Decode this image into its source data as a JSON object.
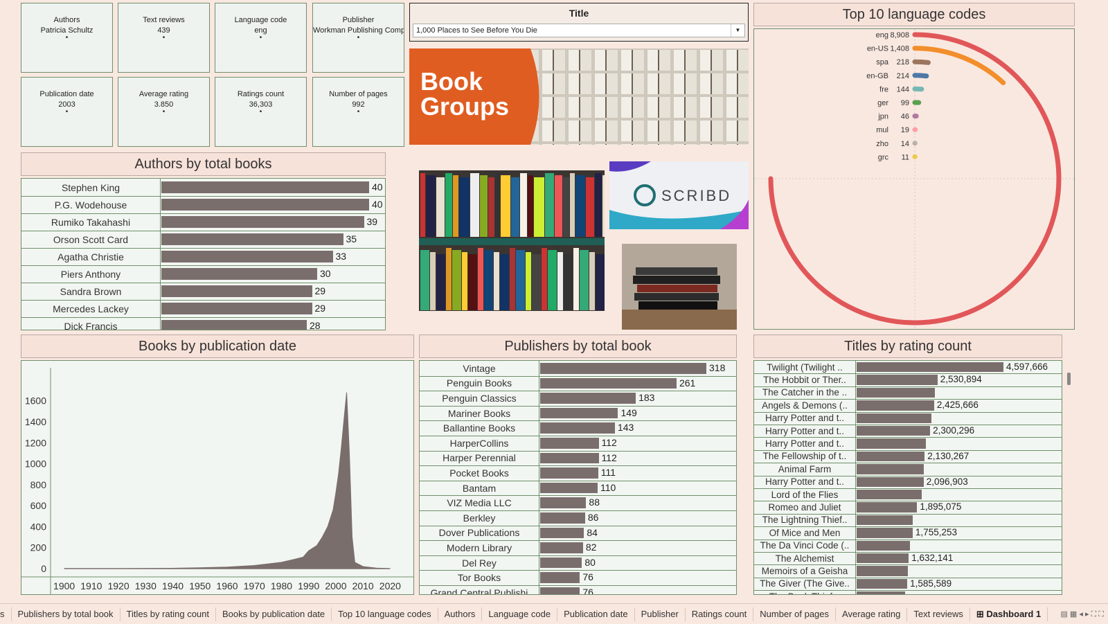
{
  "filters": [
    {
      "label": "Authors",
      "value": "Patricia Schultz"
    },
    {
      "label": "Text reviews",
      "value": "439"
    },
    {
      "label": "Language code",
      "value": "eng"
    },
    {
      "label": "Publisher",
      "value": "Workman Publishing Comp"
    },
    {
      "label": "Publication date",
      "value": "2003"
    },
    {
      "label": "Average rating",
      "value": "3.850"
    },
    {
      "label": "Ratings count",
      "value": "36,303"
    },
    {
      "label": "Number of pages",
      "value": "992"
    }
  ],
  "title_filter": {
    "label": "Title",
    "value": "1,000 Places to See Before You Die"
  },
  "images": {
    "book_groups_text": "Book Groups",
    "scribd_text": "SCRIBD"
  },
  "authors_panel": {
    "title": "Authors by total books",
    "rows": [
      {
        "name": "Stephen King",
        "value": 40
      },
      {
        "name": "P.G. Wodehouse",
        "value": 40
      },
      {
        "name": "Rumiko Takahashi",
        "value": 39
      },
      {
        "name": "Orson Scott Card",
        "value": 35
      },
      {
        "name": "Agatha Christie",
        "value": 33
      },
      {
        "name": "Piers Anthony",
        "value": 30
      },
      {
        "name": "Sandra Brown",
        "value": 29
      },
      {
        "name": "Mercedes Lackey",
        "value": 29
      },
      {
        "name": "Dick Francis",
        "value": 28
      }
    ]
  },
  "languages_panel": {
    "title": "Top 10 language codes",
    "chart_data": {
      "type": "radial-bar",
      "categories": [
        "eng",
        "en-US",
        "spa",
        "en-GB",
        "fre",
        "ger",
        "jpn",
        "mul",
        "zho",
        "grc"
      ],
      "values": [
        8908,
        1408,
        218,
        214,
        144,
        99,
        46,
        19,
        14,
        11
      ],
      "labels": [
        "8,908",
        "1,408",
        "218",
        "214",
        "144",
        "99",
        "46",
        "19",
        "14",
        "11"
      ],
      "colors": [
        "#e15759",
        "#f28e2b",
        "#9c755f",
        "#4e79a7",
        "#76b7b2",
        "#59a14f",
        "#b07aa1",
        "#ff9da7",
        "#bab0ac",
        "#edc948"
      ]
    }
  },
  "pubdate_panel": {
    "title": "Books by publication date",
    "chart_data": {
      "type": "area",
      "x": [
        1900,
        1910,
        1920,
        1930,
        1940,
        1950,
        1960,
        1970,
        1975,
        1980,
        1985,
        1988,
        1990,
        1993,
        1995,
        1997,
        1999,
        2000,
        2001,
        2002,
        2003,
        2004,
        2005,
        2006,
        2007,
        2010,
        2015,
        2020
      ],
      "y": [
        0,
        0,
        0,
        2,
        3,
        8,
        15,
        30,
        45,
        60,
        90,
        110,
        170,
        220,
        300,
        400,
        560,
        720,
        900,
        1150,
        1420,
        1680,
        1100,
        300,
        60,
        20,
        5,
        0
      ],
      "xticks": [
        "1900",
        "1910",
        "1920",
        "1930",
        "1940",
        "1950",
        "1960",
        "1970",
        "1980",
        "1990",
        "2000",
        "2010",
        "2020"
      ],
      "yticks": [
        "0",
        "200",
        "400",
        "600",
        "800",
        "1000",
        "1200",
        "1400",
        "1600"
      ],
      "xlim": [
        1895,
        2025
      ],
      "ylim": [
        0,
        1800
      ],
      "color": "#7a6e6d"
    }
  },
  "publishers_panel": {
    "title": "Publishers by total book",
    "rows": [
      {
        "name": "Vintage",
        "value": 318
      },
      {
        "name": "Penguin Books",
        "value": 261
      },
      {
        "name": "Penguin Classics",
        "value": 183
      },
      {
        "name": "Mariner Books",
        "value": 149
      },
      {
        "name": "Ballantine Books",
        "value": 143
      },
      {
        "name": "HarperCollins",
        "value": 112
      },
      {
        "name": "Harper Perennial",
        "value": 112
      },
      {
        "name": "Pocket Books",
        "value": 111
      },
      {
        "name": "Bantam",
        "value": 110
      },
      {
        "name": "VIZ Media LLC",
        "value": 88
      },
      {
        "name": "Berkley",
        "value": 86
      },
      {
        "name": "Dover Publications",
        "value": 84
      },
      {
        "name": "Modern Library",
        "value": 82
      },
      {
        "name": "Del Rey",
        "value": 80
      },
      {
        "name": "Tor Books",
        "value": 76
      },
      {
        "name": "Grand Central Publishi",
        "value": 76
      }
    ]
  },
  "ratings_panel": {
    "title": "Titles by rating count",
    "rows": [
      {
        "name": "Twilight (Twilight ..",
        "value": 4597666,
        "label": "4,597,666"
      },
      {
        "name": "The Hobbit  or Ther..",
        "value": 2530894,
        "label": "2,530,894"
      },
      {
        "name": "The Catcher in the ..",
        "value": 2457092,
        "label": ""
      },
      {
        "name": "Angels & Demons (..",
        "value": 2425666,
        "label": "2,425,666"
      },
      {
        "name": "Harry Potter and t..",
        "value": 2339585,
        "label": ""
      },
      {
        "name": "Harry Potter and t..",
        "value": 2300296,
        "label": "2,300,296"
      },
      {
        "name": "Harry Potter and t..",
        "value": 2166000,
        "label": ""
      },
      {
        "name": "The Fellowship of t..",
        "value": 2130267,
        "label": "2,130,267"
      },
      {
        "name": "Animal Farm",
        "value": 2111750,
        "label": ""
      },
      {
        "name": "Harry Potter and t..",
        "value": 2096903,
        "label": "2,096,903"
      },
      {
        "name": "Lord of the Flies",
        "value": 2036679,
        "label": ""
      },
      {
        "name": "Romeo and Juliet",
        "value": 1895075,
        "label": "1,895,075"
      },
      {
        "name": "The Lightning Thief..",
        "value": 1766725,
        "label": ""
      },
      {
        "name": "Of Mice and Men",
        "value": 1755253,
        "label": "1,755,253"
      },
      {
        "name": "The Da Vinci Code (..",
        "value": 1679000,
        "label": ""
      },
      {
        "name": "The Alchemist",
        "value": 1632141,
        "label": "1,632,141"
      },
      {
        "name": "Memoirs of a Geisha",
        "value": 1600000,
        "label": ""
      },
      {
        "name": "The Giver (The Give..",
        "value": 1585589,
        "label": "1,585,589"
      },
      {
        "name": "The Book Thief ..",
        "value": 1516000,
        "label": ""
      }
    ]
  },
  "tabs": [
    "s",
    "Publishers by total book",
    "Titles by rating count",
    "Books by publication date",
    "Top 10 language codes",
    "Authors",
    "Language code",
    "Publication date",
    "Publisher",
    "Ratings count",
    "Number of pages",
    "Average rating",
    "Text reviews",
    "Dashboard 1"
  ],
  "active_tab": "Dashboard 1"
}
